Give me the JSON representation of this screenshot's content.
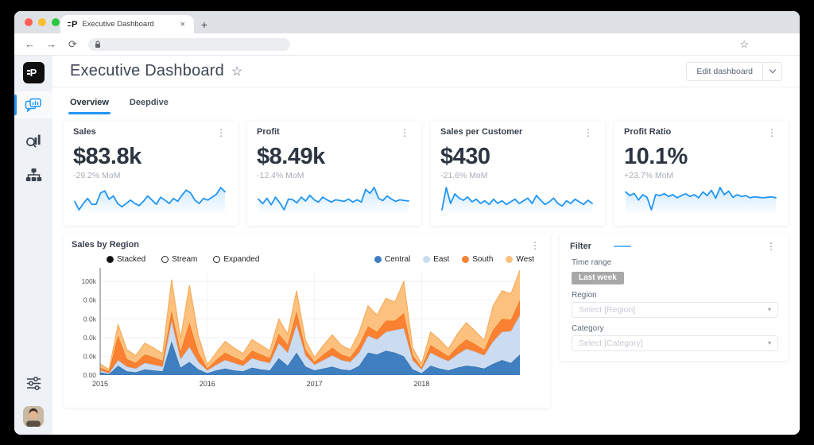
{
  "icons": {
    "kebab": "⋮",
    "caret": "▾"
  },
  "brand": {
    "logo_letter": "P"
  },
  "browser": {
    "tab_title": "Executive Dashboard",
    "close_tab": "×",
    "new_tab": "+",
    "back": "←",
    "forward": "→",
    "refresh": "⟳",
    "bookmark_star": "☆",
    "url_value": ""
  },
  "sidebar": {
    "items": [
      {
        "icon": "dashboard-chat-chart-icon",
        "active": true
      },
      {
        "icon": "search-insights-icon",
        "active": false
      },
      {
        "icon": "org-hierarchy-icon",
        "active": false
      }
    ],
    "bottom": [
      {
        "icon": "sliders-filter-icon"
      },
      {
        "icon": "user-avatar"
      }
    ]
  },
  "header": {
    "title": "Executive Dashboard",
    "favorite_icon": "☆",
    "edit_button_label": "Edit dashboard"
  },
  "tabs": {
    "items": [
      {
        "label": "Overview",
        "active": true
      },
      {
        "label": "Deepdive",
        "active": false
      }
    ]
  },
  "kpis": [
    {
      "title": "Sales",
      "value": "$83.8k",
      "change": "-29.2% MoM"
    },
    {
      "title": "Profit",
      "value": "$8.49k",
      "change": "-12.4% MoM"
    },
    {
      "title": "Sales per Customer",
      "value": "$430",
      "change": "-21.6% MoM"
    },
    {
      "title": "Profit Ratio",
      "value": "10.1%",
      "change": "+23.7% MoM"
    }
  ],
  "filter": {
    "title": "Filter",
    "time_range_label": "Time range",
    "time_range_value": "Last week",
    "region_label": "Region",
    "region_placeholder": "Select [Region]",
    "category_label": "Category",
    "category_placeholder": "Select [Category]"
  },
  "colors": {
    "accent": "#2196f3",
    "badge_bg": "#a8a8a8",
    "series": {
      "central": "#3f7fbf",
      "east": "#cbdcf2",
      "south": "#fa8132",
      "west": "#fcc17e"
    }
  },
  "chart_data": [
    {
      "type": "area",
      "title": "Sales by Region",
      "stacking_modes": [
        {
          "label": "Stacked",
          "selected": true
        },
        {
          "label": "Stream",
          "selected": false
        },
        {
          "label": "Expanded",
          "selected": false
        }
      ],
      "x_unit": "month",
      "x_range": [
        "2015-01",
        "2018-12"
      ],
      "x_ticks": [
        {
          "month": 0,
          "label": "2015"
        },
        {
          "month": 12,
          "label": "2016"
        },
        {
          "month": 24,
          "label": "2017"
        },
        {
          "month": 36,
          "label": "2018"
        }
      ],
      "y_ticks": [
        {
          "value": 100,
          "label": "100k"
        },
        {
          "value": 80,
          "label": "0.0k"
        },
        {
          "value": 60,
          "label": "0.0k"
        },
        {
          "value": 40,
          "label": "0.0k"
        },
        {
          "value": 20,
          "label": "0.0k"
        },
        {
          "value": 0,
          "label": "0.00"
        }
      ],
      "ymax": 112,
      "grid": true,
      "legend_position": "top-right",
      "series": [
        {
          "name": "Central",
          "color": "#3f7fbf",
          "stroke": "#2e6ca8",
          "values": [
            3,
            1,
            10,
            4,
            3,
            6,
            5,
            4,
            36,
            8,
            14,
            6,
            2,
            5,
            7,
            5,
            4,
            8,
            6,
            5,
            18,
            10,
            24,
            9,
            5,
            7,
            9,
            6,
            5,
            10,
            24,
            22,
            26,
            24,
            20,
            6,
            2,
            10,
            7,
            5,
            8,
            10,
            9,
            7,
            12,
            16,
            13,
            22
          ]
        },
        {
          "name": "East",
          "color": "#cbdcf2",
          "stroke": "#a9c6e8",
          "values": [
            2,
            1,
            6,
            5,
            4,
            7,
            6,
            5,
            22,
            9,
            16,
            8,
            3,
            6,
            9,
            8,
            6,
            10,
            9,
            8,
            16,
            14,
            30,
            12,
            6,
            9,
            12,
            10,
            9,
            14,
            18,
            16,
            20,
            24,
            30,
            10,
            4,
            14,
            12,
            10,
            14,
            18,
            16,
            14,
            24,
            30,
            34,
            42
          ]
        },
        {
          "name": "South",
          "color": "#fa8132",
          "stroke": "#ef6c12",
          "values": [
            3,
            2,
            26,
            8,
            6,
            9,
            8,
            6,
            10,
            8,
            26,
            10,
            2,
            5,
            8,
            6,
            5,
            8,
            7,
            5,
            10,
            8,
            14,
            6,
            3,
            6,
            8,
            6,
            5,
            8,
            10,
            8,
            12,
            10,
            16,
            5,
            2,
            8,
            7,
            5,
            8,
            10,
            8,
            6,
            12,
            14,
            12,
            16
          ]
        },
        {
          "name": "West",
          "color": "#fcc17e",
          "stroke": "#f8a64e",
          "values": [
            4,
            2,
            12,
            10,
            8,
            12,
            10,
            8,
            34,
            14,
            40,
            18,
            4,
            8,
            12,
            10,
            8,
            12,
            10,
            8,
            16,
            12,
            22,
            10,
            5,
            10,
            14,
            10,
            8,
            14,
            22,
            18,
            24,
            20,
            34,
            8,
            4,
            14,
            12,
            8,
            14,
            18,
            14,
            10,
            26,
            30,
            28,
            32
          ]
        }
      ]
    },
    {
      "type": "line",
      "name": "sales-trend",
      "values": [
        35,
        15,
        30,
        42,
        28,
        28,
        55,
        60,
        40,
        48,
        30,
        22,
        30,
        38,
        30,
        25,
        35,
        48,
        38,
        28,
        45,
        38,
        30,
        42,
        35,
        50,
        62,
        55,
        38,
        30,
        42,
        38,
        45,
        52,
        68,
        58
      ]
    },
    {
      "type": "line",
      "name": "profit-trend",
      "values": [
        40,
        28,
        42,
        25,
        45,
        30,
        12,
        40,
        38,
        30,
        45,
        35,
        50,
        38,
        32,
        45,
        38,
        32,
        38,
        36,
        34,
        40,
        32,
        38,
        32,
        65,
        55,
        70,
        42,
        36,
        48,
        40,
        34,
        38,
        36,
        35
      ]
    },
    {
      "type": "line",
      "name": "sales-per-customer-trend",
      "values": [
        18,
        60,
        30,
        48,
        40,
        36,
        42,
        33,
        38,
        30,
        35,
        28,
        38,
        30,
        35,
        28,
        33,
        38,
        30,
        35,
        40,
        30,
        45,
        36,
        28,
        33,
        40,
        30,
        25,
        35,
        30,
        38,
        33,
        28,
        36,
        30
      ]
    },
    {
      "type": "line",
      "name": "profit-ratio-trend",
      "values": [
        58,
        50,
        55,
        40,
        52,
        46,
        18,
        52,
        50,
        54,
        48,
        52,
        45,
        50,
        54,
        48,
        52,
        45,
        58,
        50,
        62,
        44,
        68,
        52,
        60,
        46,
        52,
        48,
        50,
        45,
        47,
        46,
        45,
        46,
        47,
        45
      ]
    }
  ]
}
